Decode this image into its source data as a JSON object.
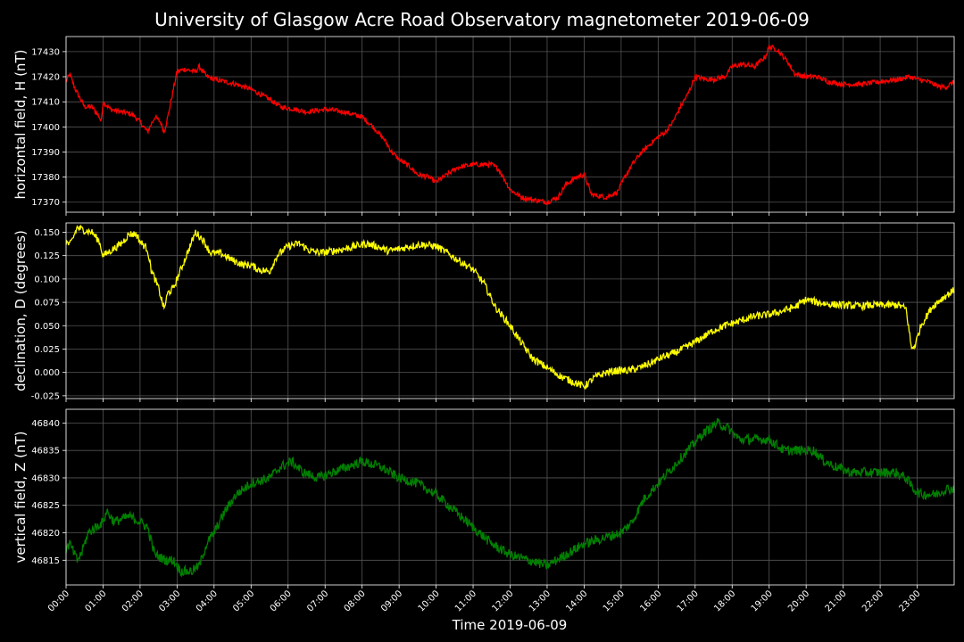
{
  "chart_data": {
    "type": "line",
    "title": "University of Glasgow Acre Road Observatory magnetometer 2019-06-09",
    "xlabel": "Time 2019-06-09",
    "x_ticks": [
      "00:00",
      "01:00",
      "02:00",
      "03:00",
      "04:00",
      "05:00",
      "06:00",
      "07:00",
      "08:00",
      "09:00",
      "10:00",
      "11:00",
      "12:00",
      "13:00",
      "14:00",
      "15:00",
      "16:00",
      "17:00",
      "18:00",
      "19:00",
      "20:00",
      "21:00",
      "22:00",
      "23:00"
    ],
    "xlim_hours": [
      0,
      24
    ],
    "grid": true,
    "panels": [
      {
        "ylabel": "horizontal field, H (nT)",
        "color": "#ff0000",
        "ylim": [
          17366,
          17436
        ],
        "y_ticks": [
          "17370",
          "17380",
          "17390",
          "17400",
          "17410",
          "17420",
          "17430"
        ],
        "noise": 1.0,
        "points": [
          [
            0,
            17418
          ],
          [
            0.1,
            17421
          ],
          [
            0.25,
            17415
          ],
          [
            0.5,
            17408
          ],
          [
            0.7,
            17408
          ],
          [
            0.8,
            17406
          ],
          [
            0.9,
            17404
          ],
          [
            0.95,
            17402
          ],
          [
            1.0,
            17410
          ],
          [
            1.2,
            17407
          ],
          [
            1.5,
            17406
          ],
          [
            1.8,
            17405
          ],
          [
            2.0,
            17402
          ],
          [
            2.2,
            17398
          ],
          [
            2.4,
            17404
          ],
          [
            2.55,
            17402
          ],
          [
            2.65,
            17398
          ],
          [
            2.75,
            17404
          ],
          [
            2.9,
            17415
          ],
          [
            3.0,
            17422
          ],
          [
            3.2,
            17423
          ],
          [
            3.5,
            17422
          ],
          [
            3.6,
            17424
          ],
          [
            3.8,
            17420
          ],
          [
            4.0,
            17419
          ],
          [
            4.3,
            17418
          ],
          [
            4.6,
            17417
          ],
          [
            5.0,
            17415
          ],
          [
            5.5,
            17411
          ],
          [
            5.8,
            17408
          ],
          [
            6.2,
            17407
          ],
          [
            6.5,
            17406
          ],
          [
            7.0,
            17407
          ],
          [
            7.5,
            17406
          ],
          [
            8.0,
            17404
          ],
          [
            8.3,
            17400
          ],
          [
            8.6,
            17395
          ],
          [
            8.8,
            17390
          ],
          [
            9.0,
            17387
          ],
          [
            9.3,
            17384
          ],
          [
            9.5,
            17381
          ],
          [
            9.8,
            17380
          ],
          [
            10.0,
            17378
          ],
          [
            10.3,
            17381
          ],
          [
            10.6,
            17384
          ],
          [
            11.0,
            17385
          ],
          [
            11.5,
            17385
          ],
          [
            11.7,
            17383
          ],
          [
            12.0,
            17375
          ],
          [
            12.3,
            17372
          ],
          [
            12.6,
            17371
          ],
          [
            13.0,
            17370
          ],
          [
            13.3,
            17372
          ],
          [
            13.5,
            17377
          ],
          [
            13.8,
            17380
          ],
          [
            14.0,
            17381
          ],
          [
            14.2,
            17373
          ],
          [
            14.6,
            17372
          ],
          [
            14.9,
            17374
          ],
          [
            15.1,
            17380
          ],
          [
            15.3,
            17385
          ],
          [
            15.5,
            17389
          ],
          [
            15.7,
            17392
          ],
          [
            16.0,
            17396
          ],
          [
            16.2,
            17398
          ],
          [
            16.4,
            17402
          ],
          [
            16.6,
            17408
          ],
          [
            16.8,
            17413
          ],
          [
            17.0,
            17420
          ],
          [
            17.3,
            17419
          ],
          [
            17.5,
            17419
          ],
          [
            17.8,
            17420
          ],
          [
            18.0,
            17424
          ],
          [
            18.3,
            17425
          ],
          [
            18.6,
            17424
          ],
          [
            18.9,
            17428
          ],
          [
            19.0,
            17432
          ],
          [
            19.2,
            17431
          ],
          [
            19.5,
            17426
          ],
          [
            19.7,
            17421
          ],
          [
            20.0,
            17420
          ],
          [
            20.3,
            17420
          ],
          [
            20.6,
            17418
          ],
          [
            21.0,
            17417
          ],
          [
            21.5,
            17417
          ],
          [
            22.0,
            17418
          ],
          [
            22.5,
            17419
          ],
          [
            22.8,
            17420
          ],
          [
            23.0,
            17419
          ],
          [
            23.3,
            17418
          ],
          [
            23.6,
            17416
          ],
          [
            23.8,
            17416
          ],
          [
            24.0,
            17418
          ]
        ]
      },
      {
        "ylabel": "declination, D (degrees)",
        "color": "#ffff00",
        "ylim": [
          -0.028,
          0.16
        ],
        "y_ticks": [
          "-0.025",
          "0.000",
          "0.025",
          "0.050",
          "0.075",
          "0.100",
          "0.125",
          "0.150"
        ],
        "noise": 0.004,
        "points": [
          [
            0,
            0.14
          ],
          [
            0.1,
            0.136
          ],
          [
            0.2,
            0.145
          ],
          [
            0.3,
            0.155
          ],
          [
            0.5,
            0.152
          ],
          [
            0.7,
            0.15
          ],
          [
            0.9,
            0.14
          ],
          [
            1.0,
            0.125
          ],
          [
            1.2,
            0.13
          ],
          [
            1.5,
            0.138
          ],
          [
            1.7,
            0.148
          ],
          [
            1.9,
            0.148
          ],
          [
            2.0,
            0.14
          ],
          [
            2.2,
            0.132
          ],
          [
            2.3,
            0.11
          ],
          [
            2.5,
            0.09
          ],
          [
            2.65,
            0.068
          ],
          [
            2.75,
            0.085
          ],
          [
            2.9,
            0.09
          ],
          [
            3.1,
            0.11
          ],
          [
            3.3,
            0.13
          ],
          [
            3.5,
            0.15
          ],
          [
            3.7,
            0.142
          ],
          [
            3.9,
            0.128
          ],
          [
            4.2,
            0.127
          ],
          [
            4.5,
            0.12
          ],
          [
            4.8,
            0.115
          ],
          [
            5.0,
            0.115
          ],
          [
            5.2,
            0.11
          ],
          [
            5.5,
            0.108
          ],
          [
            5.7,
            0.125
          ],
          [
            6.0,
            0.135
          ],
          [
            6.3,
            0.138
          ],
          [
            6.6,
            0.13
          ],
          [
            6.9,
            0.128
          ],
          [
            7.2,
            0.13
          ],
          [
            7.5,
            0.132
          ],
          [
            7.8,
            0.135
          ],
          [
            8.1,
            0.138
          ],
          [
            8.4,
            0.135
          ],
          [
            8.7,
            0.13
          ],
          [
            9.0,
            0.132
          ],
          [
            9.3,
            0.135
          ],
          [
            9.6,
            0.137
          ],
          [
            10.0,
            0.135
          ],
          [
            10.3,
            0.128
          ],
          [
            10.6,
            0.12
          ],
          [
            11.0,
            0.11
          ],
          [
            11.3,
            0.095
          ],
          [
            11.6,
            0.07
          ],
          [
            12.0,
            0.05
          ],
          [
            12.3,
            0.032
          ],
          [
            12.6,
            0.015
          ],
          [
            13.0,
            0.005
          ],
          [
            13.4,
            -0.005
          ],
          [
            13.7,
            -0.01
          ],
          [
            14.0,
            -0.015
          ],
          [
            14.3,
            -0.005
          ],
          [
            14.6,
            0.0
          ],
          [
            14.9,
            0.002
          ],
          [
            15.2,
            0.002
          ],
          [
            15.5,
            0.005
          ],
          [
            15.8,
            0.01
          ],
          [
            16.1,
            0.016
          ],
          [
            16.4,
            0.02
          ],
          [
            16.8,
            0.028
          ],
          [
            17.1,
            0.035
          ],
          [
            17.5,
            0.045
          ],
          [
            17.8,
            0.05
          ],
          [
            18.2,
            0.055
          ],
          [
            18.6,
            0.06
          ],
          [
            19.0,
            0.062
          ],
          [
            19.3,
            0.065
          ],
          [
            19.7,
            0.07
          ],
          [
            20.0,
            0.078
          ],
          [
            20.3,
            0.075
          ],
          [
            20.6,
            0.073
          ],
          [
            21.0,
            0.072
          ],
          [
            21.4,
            0.071
          ],
          [
            21.8,
            0.072
          ],
          [
            22.2,
            0.072
          ],
          [
            22.5,
            0.072
          ],
          [
            22.7,
            0.068
          ],
          [
            22.85,
            0.025
          ],
          [
            22.95,
            0.03
          ],
          [
            23.1,
            0.05
          ],
          [
            23.4,
            0.07
          ],
          [
            23.7,
            0.08
          ],
          [
            24.0,
            0.088
          ]
        ]
      },
      {
        "ylabel": "vertical field, Z (nT)",
        "color": "#008000",
        "ylim": [
          46810.5,
          46842.5
        ],
        "y_ticks": [
          "46815",
          "46820",
          "46825",
          "46830",
          "46835",
          "46840"
        ],
        "noise": 0.9,
        "points": [
          [
            0,
            46817
          ],
          [
            0.1,
            46818
          ],
          [
            0.3,
            46815
          ],
          [
            0.4,
            46816
          ],
          [
            0.6,
            46820
          ],
          [
            0.8,
            46821
          ],
          [
            1.0,
            46822
          ],
          [
            1.1,
            46824
          ],
          [
            1.3,
            46822
          ],
          [
            1.7,
            46823
          ],
          [
            2.0,
            46822
          ],
          [
            2.2,
            46821
          ],
          [
            2.4,
            46816
          ],
          [
            2.7,
            46815
          ],
          [
            2.9,
            46815
          ],
          [
            3.1,
            46813
          ],
          [
            3.4,
            46813
          ],
          [
            3.6,
            46814
          ],
          [
            3.8,
            46818
          ],
          [
            4.0,
            46820
          ],
          [
            4.3,
            46824
          ],
          [
            4.6,
            46827
          ],
          [
            5.0,
            46829
          ],
          [
            5.5,
            46830
          ],
          [
            5.8,
            46832
          ],
          [
            6.1,
            46833
          ],
          [
            6.4,
            46831
          ],
          [
            6.8,
            46830
          ],
          [
            7.2,
            46831
          ],
          [
            7.6,
            46832
          ],
          [
            8.0,
            46833
          ],
          [
            8.5,
            46832
          ],
          [
            9.0,
            46830
          ],
          [
            9.5,
            46829
          ],
          [
            10.0,
            46827
          ],
          [
            10.5,
            46824
          ],
          [
            11.0,
            46821
          ],
          [
            11.5,
            46818
          ],
          [
            12.0,
            46816
          ],
          [
            12.5,
            46815
          ],
          [
            13.0,
            46814
          ],
          [
            13.5,
            46816
          ],
          [
            14.0,
            46818
          ],
          [
            14.5,
            46819
          ],
          [
            15.0,
            46820
          ],
          [
            15.3,
            46822
          ],
          [
            15.6,
            46826
          ],
          [
            16.0,
            46829
          ],
          [
            16.4,
            46832
          ],
          [
            16.8,
            46835
          ],
          [
            17.2,
            46838
          ],
          [
            17.6,
            46840
          ],
          [
            17.9,
            46839
          ],
          [
            18.2,
            46837
          ],
          [
            18.6,
            46837
          ],
          [
            19.0,
            46837
          ],
          [
            19.4,
            46835
          ],
          [
            19.8,
            46835
          ],
          [
            20.2,
            46835
          ],
          [
            20.5,
            46833
          ],
          [
            20.8,
            46832
          ],
          [
            21.2,
            46831
          ],
          [
            21.6,
            46831
          ],
          [
            22.0,
            46831
          ],
          [
            22.4,
            46831
          ],
          [
            22.7,
            46830
          ],
          [
            22.9,
            46828
          ],
          [
            23.1,
            46827
          ],
          [
            23.5,
            46827
          ],
          [
            23.8,
            46828
          ],
          [
            24.0,
            46828
          ]
        ]
      }
    ]
  }
}
